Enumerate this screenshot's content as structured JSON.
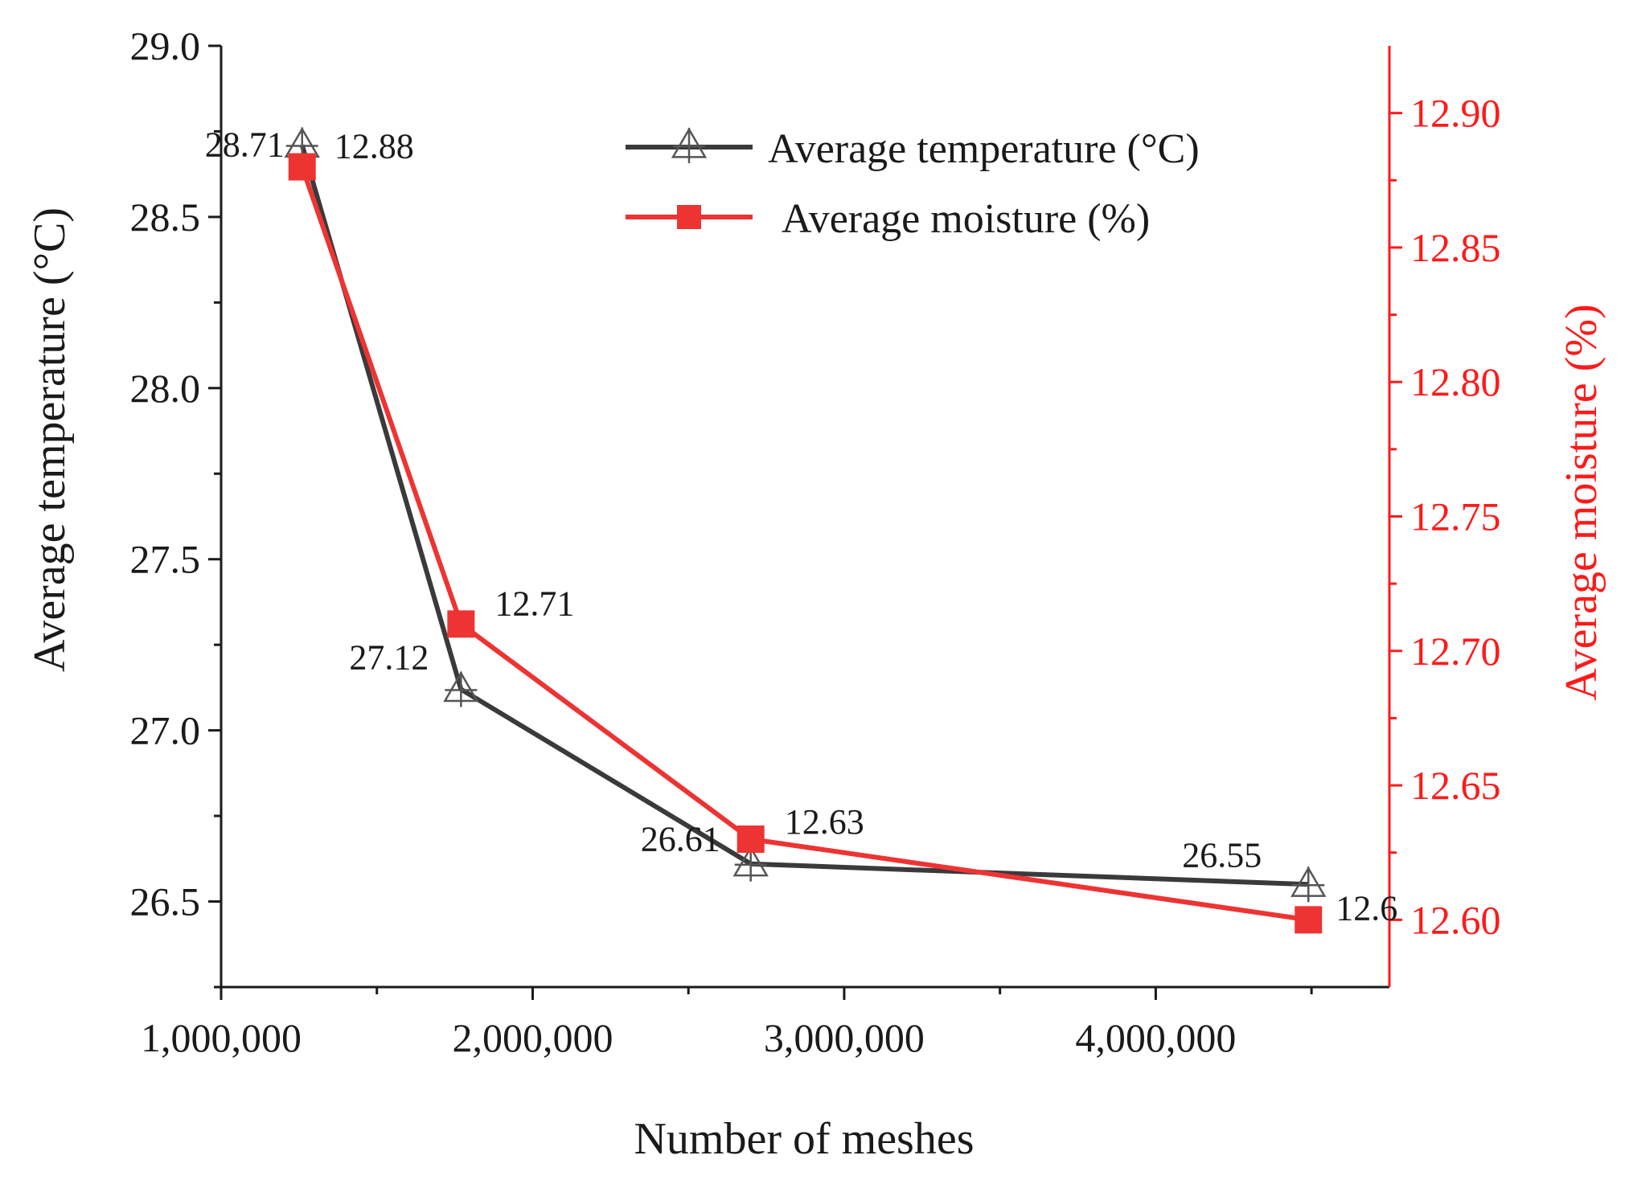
{
  "chart_data": {
    "type": "line",
    "xlabel": "Number of meshes",
    "ylabel_left": "Average temperature (°C)",
    "ylabel_right": "Average moisture (%)",
    "x": [
      1260000,
      1770000,
      2700000,
      4490000
    ],
    "x_ticks": [
      1000000,
      2000000,
      3000000,
      4000000
    ],
    "x_tick_labels": [
      "1,000,000",
      "2,000,000",
      "3,000,000",
      "4,000,000"
    ],
    "xlim": [
      1000000,
      4750000
    ],
    "ylim_left": [
      26.25,
      29.0
    ],
    "left_ticks": [
      26.5,
      27.0,
      27.5,
      28.0,
      28.5,
      29.0
    ],
    "left_tick_labels": [
      "26.5",
      "27.0",
      "27.5",
      "28.0",
      "28.5",
      "29.0"
    ],
    "ylim_right": [
      12.575,
      12.925
    ],
    "right_ticks": [
      12.6,
      12.65,
      12.7,
      12.75,
      12.8,
      12.85,
      12.9
    ],
    "right_tick_labels": [
      "12.60",
      "12.65",
      "12.70",
      "12.75",
      "12.80",
      "12.85",
      "12.90"
    ],
    "series": [
      {
        "name": "Average temperature (°C)",
        "axis": "left",
        "color": "#3a3a3a",
        "marker": "triangle-cross",
        "values": [
          28.71,
          27.12,
          26.61,
          26.55
        ],
        "labels": [
          "28.71",
          "27.12",
          "26.61",
          "26.55"
        ]
      },
      {
        "name": "Average moisture (%)",
        "axis": "right",
        "color": "#ee3333",
        "marker": "square",
        "values": [
          12.88,
          12.71,
          12.63,
          12.6
        ],
        "labels": [
          "12.88",
          "12.71",
          "12.63",
          "12.6"
        ]
      }
    ],
    "right_axis_color": "#ff1a1a",
    "legend_position": "top-right"
  }
}
